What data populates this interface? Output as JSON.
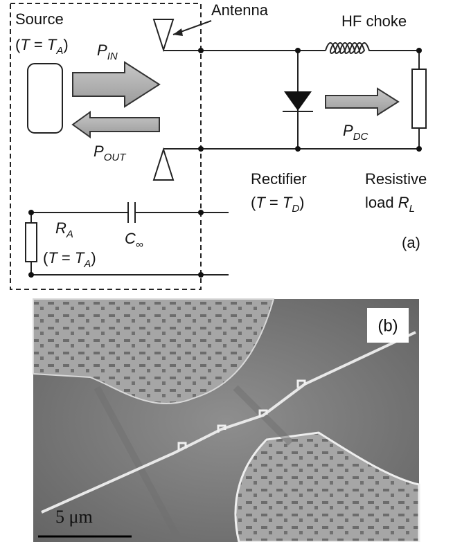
{
  "panel_a": {
    "label": "(a)",
    "source": "Source",
    "source_temp": [
      "(",
      "T",
      " = ",
      "T",
      "A",
      ")"
    ],
    "p_in": [
      "P",
      "IN"
    ],
    "p_out": [
      "P",
      "OUT"
    ],
    "antenna": "Antenna",
    "hf_choke": "HF choke",
    "p_dc": [
      "P",
      "DC"
    ],
    "rectifier": "Rectifier",
    "rectifier_temp": [
      "(",
      "T",
      " = ",
      "T",
      "D",
      ")"
    ],
    "resistive": "Resistive",
    "load": [
      "load  ",
      "R",
      "L"
    ],
    "r_a": [
      "R",
      "A"
    ],
    "r_a_temp": [
      "(",
      "T",
      " = ",
      "T",
      "A",
      ")"
    ],
    "c_inf": [
      "C",
      "∞"
    ]
  },
  "panel_b": {
    "label": "(b)",
    "scale_bar": "5 μm"
  }
}
